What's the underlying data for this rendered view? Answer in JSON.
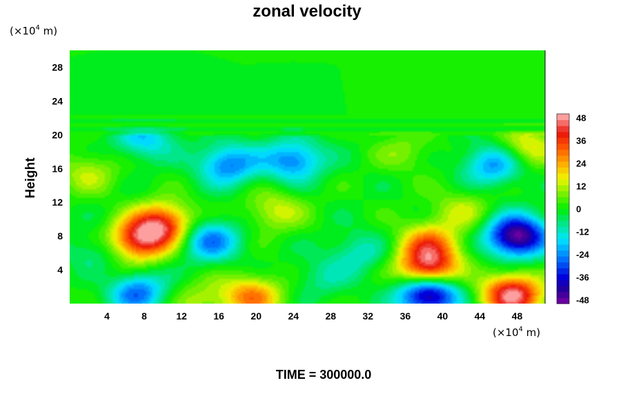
{
  "chart_data": {
    "type": "heatmap",
    "title": "zonal velocity",
    "ylabel": "Height",
    "x_unit": {
      "prefix": "(×10",
      "exponent": "4",
      "suffix": " m)"
    },
    "y_unit": {
      "prefix": "(×10",
      "exponent": "4",
      "suffix": " m)"
    },
    "xlim": [
      0,
      51
    ],
    "ylim": [
      0,
      30
    ],
    "x_ticks": [
      "4",
      "8",
      "12",
      "16",
      "20",
      "24",
      "28",
      "32",
      "36",
      "40",
      "44",
      "48"
    ],
    "y_ticks": [
      "4",
      "8",
      "12",
      "16",
      "20",
      "24",
      "28"
    ],
    "colorbar": {
      "range": [
        -50,
        50
      ],
      "ticks": [
        "48",
        "36",
        "24",
        "12",
        "0",
        "-12",
        "-24",
        "-36",
        "-48"
      ]
    },
    "features": [
      {
        "x": 7.5,
        "y": 7.5,
        "value": 40
      },
      {
        "x": 10,
        "y": 9.5,
        "value": 36
      },
      {
        "x": 5,
        "y": 3,
        "value": 8
      },
      {
        "x": 38.5,
        "y": 4,
        "value": 44
      },
      {
        "x": 38.5,
        "y": 7,
        "value": 28
      },
      {
        "x": 47.5,
        "y": 1,
        "value": 48
      },
      {
        "x": 19.5,
        "y": 0.8,
        "value": 28
      },
      {
        "x": 14,
        "y": 0.5,
        "value": 10
      },
      {
        "x": 48,
        "y": 8,
        "value": -50
      },
      {
        "x": 38.5,
        "y": 1.2,
        "value": -50
      },
      {
        "x": 7,
        "y": 1.5,
        "value": -30
      },
      {
        "x": 15,
        "y": 7.5,
        "value": -26
      },
      {
        "x": 3,
        "y": 6,
        "value": -10
      },
      {
        "x": 31,
        "y": 6,
        "value": -12
      },
      {
        "x": 24,
        "y": 17,
        "value": -26
      },
      {
        "x": 17,
        "y": 16.5,
        "value": -26
      },
      {
        "x": 45.5,
        "y": 16.5,
        "value": -24
      },
      {
        "x": 8,
        "y": 19.5,
        "value": -18
      },
      {
        "x": 22,
        "y": 11,
        "value": 14
      },
      {
        "x": 42,
        "y": 11,
        "value": 12
      },
      {
        "x": 2,
        "y": 15.5,
        "value": 12
      },
      {
        "x": 49,
        "y": 18.5,
        "value": 18
      },
      {
        "x": 36,
        "y": 18,
        "value": 8
      },
      {
        "x": 27,
        "y": 3,
        "value": -8
      }
    ],
    "grid": false
  },
  "footer": {
    "time_label": "TIME = 300000.0"
  }
}
